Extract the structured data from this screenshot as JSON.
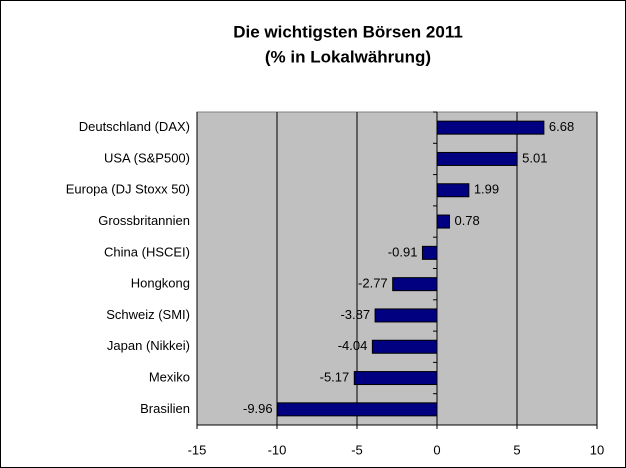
{
  "chart_data": {
    "type": "barh",
    "title": "Die wichtigsten Börsen 2011",
    "subtitle": "(% in Lokalwährung)",
    "categories": [
      "Deutschland (DAX)",
      "USA (S&P500)",
      "Europa (DJ Stoxx 50)",
      "Grossbritannien",
      "China (HSCEI)",
      "Hongkong",
      "Schweiz (SMI)",
      "Japan (Nikkei)",
      "Mexiko",
      "Brasilien"
    ],
    "values": [
      6.68,
      5.01,
      1.99,
      0.78,
      -0.91,
      -2.77,
      -3.87,
      -4.04,
      -5.17,
      -9.96
    ],
    "color": "#000080",
    "xlim": [
      -15,
      10
    ],
    "xticks": [
      -15,
      -10,
      -5,
      0,
      5,
      10
    ],
    "grid": true
  }
}
